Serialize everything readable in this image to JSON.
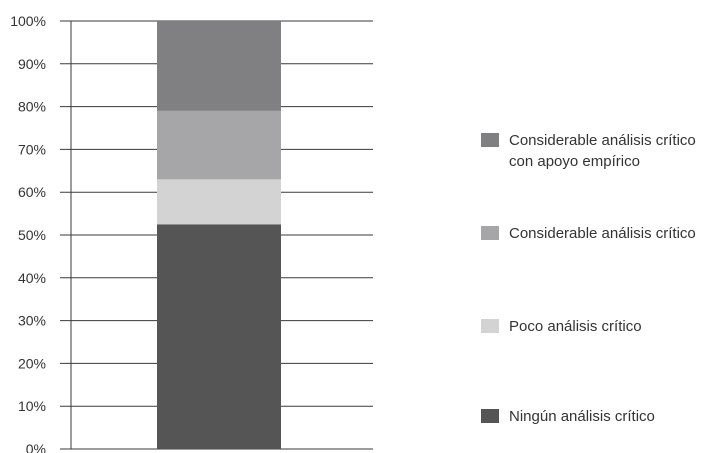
{
  "chart_data": {
    "type": "bar",
    "stacked": true,
    "categories": [
      ""
    ],
    "ylim": [
      0,
      100
    ],
    "y_ticks": [
      "0%",
      "10%",
      "20%",
      "30%",
      "40%",
      "50%",
      "60%",
      "70%",
      "80%",
      "90%",
      "100%"
    ],
    "grid": true,
    "legend_position": "right",
    "series": [
      {
        "name": "Ningún análisis crítico",
        "values": [
          52.5
        ],
        "color": "#555556"
      },
      {
        "name": "Poco análisis crítico",
        "values": [
          10.5
        ],
        "color": "#d3d3d4"
      },
      {
        "name": "Considerable análisis crítico",
        "values": [
          16.0
        ],
        "color": "#a6a6a8"
      },
      {
        "name": "Considerable análisis crítico con apoyo empírico",
        "values": [
          21.0
        ],
        "color": "#808083"
      }
    ],
    "legend": [
      {
        "lines": [
          "Considerable análisis crítico",
          "con apoyo empírico"
        ],
        "color": "#808083"
      },
      {
        "lines": [
          "Considerable análisis crítico"
        ],
        "color": "#a6a6a8"
      },
      {
        "lines": [
          "Poco análisis crítico"
        ],
        "color": "#d3d3d4"
      },
      {
        "lines": [
          "Ningún análisis crítico"
        ],
        "color": "#555556"
      }
    ]
  }
}
